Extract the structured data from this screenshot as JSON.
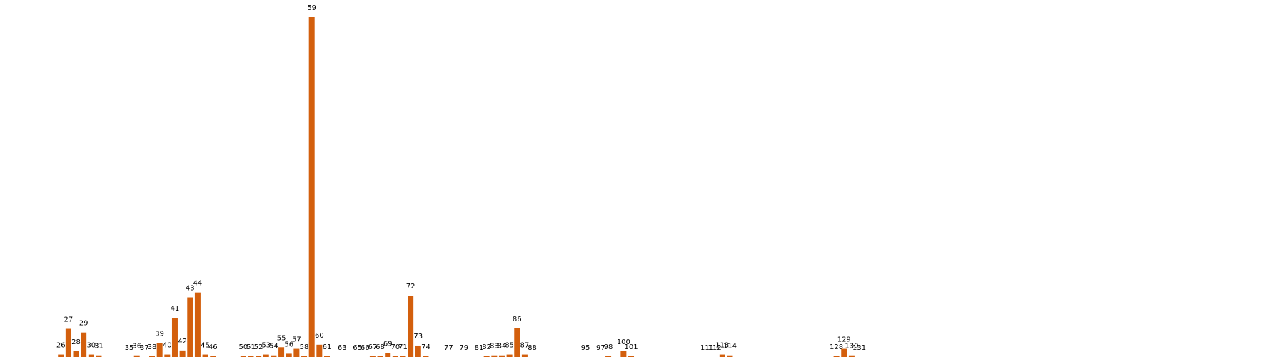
{
  "chart_data": {
    "type": "bar",
    "title": "",
    "xlabel": "",
    "ylabel": "",
    "bar_color": "#d35f0d",
    "xlim": [
      18,
      187
    ],
    "ylim": [
      0,
      1
    ],
    "grid": false,
    "legend": "none",
    "categories": [
      "26",
      "27",
      "28",
      "29",
      "30",
      "31",
      "35",
      "36",
      "37",
      "38",
      "39",
      "40",
      "41",
      "42",
      "43",
      "44",
      "45",
      "46",
      "50",
      "51",
      "52",
      "53",
      "54",
      "55",
      "56",
      "57",
      "58",
      "59",
      "60",
      "61",
      "63",
      "65",
      "66",
      "67",
      "68",
      "69",
      "70",
      "71",
      "72",
      "73",
      "74",
      "77",
      "79",
      "81",
      "82",
      "83",
      "84",
      "85",
      "86",
      "87",
      "88",
      "95",
      "97",
      "98",
      "100",
      "101",
      "111",
      "112",
      "113",
      "114",
      "128",
      "129",
      "130",
      "131"
    ],
    "x": [
      26,
      27,
      28,
      29,
      30,
      31,
      35,
      36,
      37,
      38,
      39,
      40,
      41,
      42,
      43,
      44,
      45,
      46,
      50,
      51,
      52,
      53,
      54,
      55,
      56,
      57,
      58,
      59,
      60,
      61,
      63,
      65,
      66,
      67,
      68,
      69,
      70,
      71,
      72,
      73,
      74,
      77,
      79,
      81,
      82,
      83,
      84,
      85,
      86,
      87,
      88,
      95,
      97,
      98,
      100,
      101,
      111,
      112,
      113,
      114,
      128,
      129,
      130,
      131
    ],
    "values": [
      0.0072,
      0.0829,
      0.0168,
      0.0721,
      0.0072,
      0.0048,
      0,
      0.0048,
      0,
      0.0024,
      0.0408,
      0.0072,
      0.1153,
      0.0192,
      0.1754,
      0.1898,
      0.0072,
      0.0024,
      0.0024,
      0.0024,
      0.0024,
      0.0072,
      0.0048,
      0.0288,
      0.0096,
      0.024,
      0.0024,
      1.0,
      0.0361,
      0.0024,
      0,
      0,
      0,
      0.0024,
      0.0024,
      0.012,
      0.0024,
      0.0024,
      0.1802,
      0.0337,
      0.0024,
      0,
      0,
      0,
      0.0024,
      0.0048,
      0.0048,
      0.0072,
      0.0841,
      0.0072,
      0,
      0,
      0,
      0.0024,
      0.0168,
      0.0024,
      0,
      0,
      0.0072,
      0.0048,
      0.0024,
      0.024,
      0.0048,
      0
    ]
  }
}
